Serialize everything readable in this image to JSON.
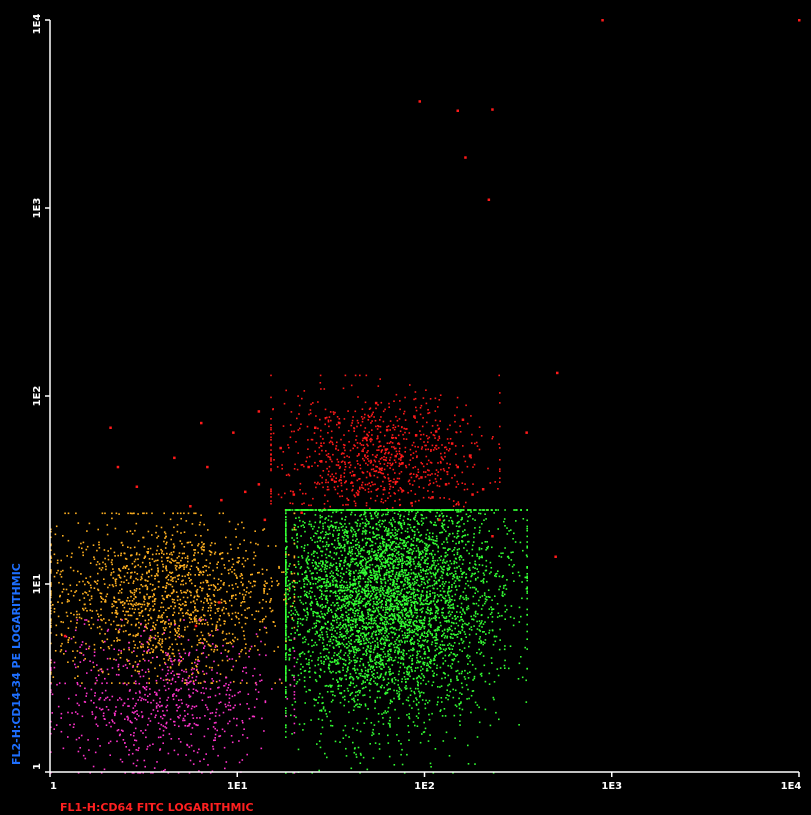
{
  "chart_data": {
    "type": "scatter",
    "title": "",
    "xlabel": "FL1-H:CD64 FITC LOGARITHMIC",
    "ylabel": "FL2-H:CD14-34 PE LOGARITHMIC",
    "xscale": "log",
    "yscale": "log",
    "xlim": [
      1,
      10000
    ],
    "ylim": [
      1,
      10000
    ],
    "x_ticks": [
      "1",
      "1E1",
      "1E2",
      "1E3",
      "1E4"
    ],
    "y_ticks": [
      "1",
      "1E1",
      "1E2",
      "1E3",
      "1E4"
    ],
    "grid": false,
    "background": "#000000",
    "axis_color": "#ffffff",
    "series": [
      {
        "color": "#ff1a1a",
        "points": [
          [
            2.1,
            68
          ],
          [
            2.3,
            42
          ],
          [
            2.9,
            33
          ],
          [
            4.6,
            47
          ],
          [
            6.4,
            72
          ],
          [
            6.9,
            42
          ],
          [
            9.5,
            64
          ],
          [
            13,
            83
          ],
          [
            11,
            31
          ],
          [
            8.2,
            28
          ],
          [
            5.6,
            26
          ],
          [
            17,
            53
          ],
          [
            13,
            34
          ],
          [
            20,
            30
          ],
          [
            22,
            24
          ],
          [
            26,
            68
          ],
          [
            35,
            72
          ],
          [
            42,
            38
          ],
          [
            48,
            60
          ],
          [
            55,
            92
          ],
          [
            63,
            66
          ],
          [
            70,
            48
          ],
          [
            88,
            78
          ],
          [
            90,
            62
          ],
          [
            96,
            37
          ],
          [
            115,
            65
          ],
          [
            140,
            56
          ],
          [
            160,
            75
          ],
          [
            175,
            48
          ],
          [
            205,
            32
          ],
          [
            230,
            18
          ],
          [
            350,
            64
          ],
          [
            500,
            14
          ],
          [
            8,
            8
          ],
          [
            6,
            6
          ],
          [
            14,
            22
          ],
          [
            28,
            45
          ],
          [
            44,
            30
          ],
          [
            76,
            44
          ],
          [
            120,
            22
          ],
          [
            150,
            42
          ],
          [
            62,
            52
          ],
          [
            58,
            41
          ],
          [
            32,
            36
          ],
          [
            24,
            42
          ],
          [
            85,
            27
          ],
          [
            110,
            29
          ],
          [
            180,
            30
          ],
          [
            130,
            34
          ],
          [
            70,
            35
          ]
        ]
      },
      {
        "color": "#ff1a1a",
        "points": [
          [
            1.2,
            5.3
          ],
          [
            94,
            3700
          ],
          [
            150,
            3300
          ],
          [
            165,
            1860
          ],
          [
            220,
            1110
          ],
          [
            230,
            3350
          ],
          [
            890,
            10000
          ],
          [
            10000,
            10000
          ],
          [
            510,
            133
          ]
        ]
      }
    ],
    "populations": [
      {
        "color": "#ff1a1a",
        "x_center": 55,
        "y_center": 48,
        "x_range": [
          15,
          250
        ],
        "y_range": [
          25,
          130
        ]
      },
      {
        "color": "#33ff33",
        "x_center": 60,
        "y_center": 9,
        "x_range": [
          18,
          350
        ],
        "y_range": [
          1,
          25
        ]
      },
      {
        "color": "#ffb020",
        "x_center": 4,
        "y_center": 8.5,
        "x_range": [
          1,
          20
        ],
        "y_range": [
          3,
          24
        ]
      },
      {
        "color": "#ff33cc",
        "x_center": 4,
        "y_center": 2.4,
        "x_range": [
          1,
          20
        ],
        "y_range": [
          1,
          6.5
        ]
      }
    ]
  }
}
